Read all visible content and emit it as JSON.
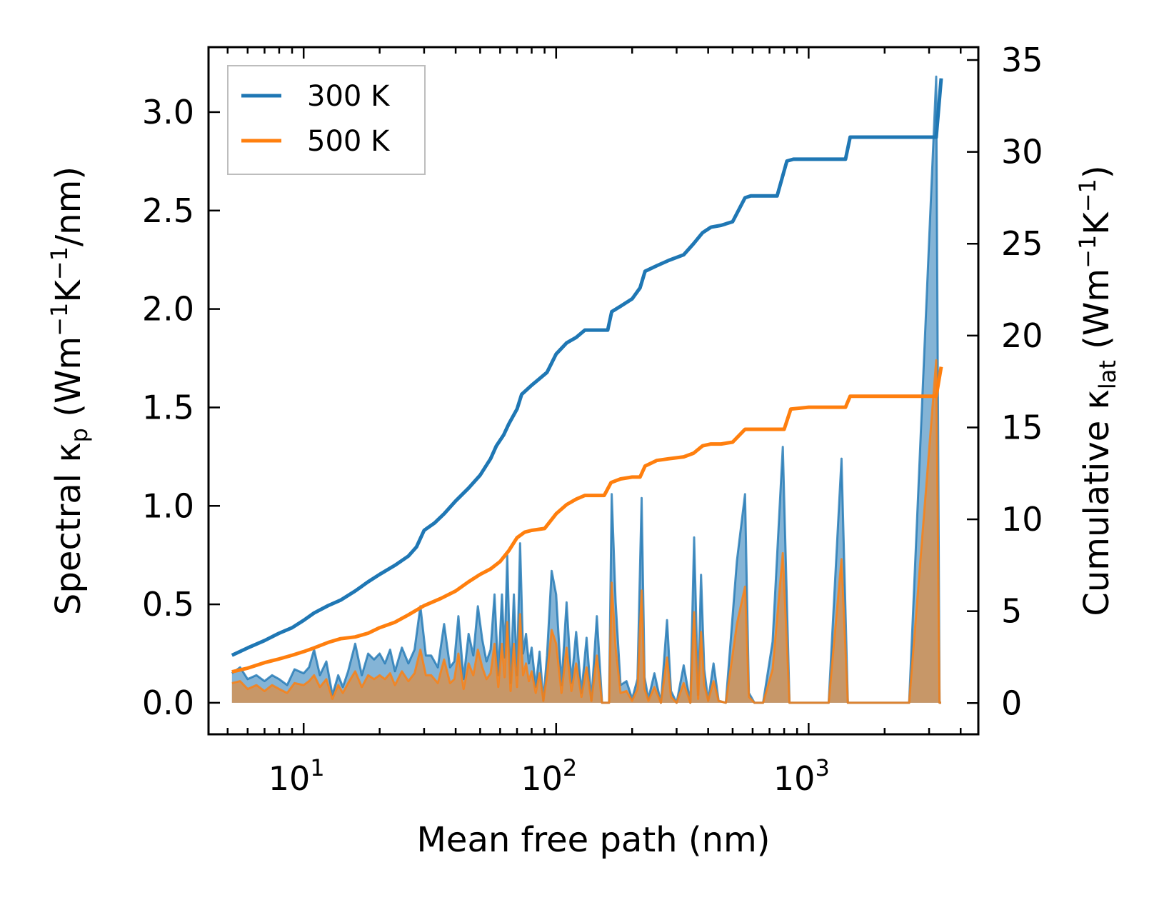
{
  "chart_data": {
    "type": "line",
    "title": "",
    "xlabel": "Mean free path (nm)",
    "xscale": "log",
    "xlim": [
      4.2,
      4700
    ],
    "x_ticks": [
      {
        "value": 10,
        "base": "10",
        "exp": "1"
      },
      {
        "value": 100,
        "base": "10",
        "exp": "2"
      },
      {
        "value": 1000,
        "base": "10",
        "exp": "3"
      }
    ],
    "y_left": {
      "label_prefix": "Spectral κ",
      "label_sub": "p",
      "label_units_open": " (Wm",
      "label_sup1": "−1",
      "label_mid": "K",
      "label_sup2": "−1",
      "label_units_close": "/nm)",
      "ylim": [
        -0.16,
        3.33
      ],
      "ticks": [
        "0.0",
        "0.5",
        "1.0",
        "1.5",
        "2.0",
        "2.5",
        "3.0"
      ],
      "tick_values": [
        0,
        0.5,
        1.0,
        1.5,
        2.0,
        2.5,
        3.0
      ]
    },
    "y_right": {
      "label_prefix": "Cumulative κ",
      "label_sub": "lat",
      "label_units_open": " (Wm",
      "label_sup1": "−1",
      "label_mid": "K",
      "label_sup2": "−1",
      "label_units_close": ")",
      "ylim": [
        -1.7,
        35.7
      ],
      "ticks": [
        "0",
        "5",
        "10",
        "15",
        "20",
        "25",
        "30",
        "35"
      ],
      "tick_values": [
        0,
        5,
        10,
        15,
        20,
        25,
        30,
        35
      ]
    },
    "legend": {
      "position": "top-left",
      "entries": [
        {
          "label": "300 K",
          "color": "#1f77b4"
        },
        {
          "label": "500 K",
          "color": "#ff7f0e"
        }
      ]
    },
    "cumulative_series": [
      {
        "name": "300 K",
        "color": "#1f77b4",
        "axis": "right",
        "x": [
          5.2,
          6.0,
          7.0,
          8.0,
          9.0,
          10.0,
          11.0,
          12.5,
          14.0,
          16.0,
          18.0,
          20.0,
          23.0,
          26.0,
          28.0,
          30.0,
          33.0,
          36.0,
          40.0,
          45.0,
          50.0,
          55.0,
          58.0,
          62.0,
          65.0,
          70.0,
          73.0,
          80.0,
          85.0,
          92.0,
          100.0,
          110.0,
          120.0,
          130.0,
          140.0,
          150.0,
          160.0,
          166.0,
          180.0,
          200.0,
          215.0,
          225.0,
          250.0,
          280.0,
          320.0,
          350.0,
          380.0,
          410.0,
          450.0,
          500.0,
          560.0,
          590.0,
          650.0,
          750.0,
          820.0,
          870.0,
          1000.0,
          1200.0,
          1400.0,
          1460.0,
          2000.0,
          3000.0,
          3200.0,
          3350.0
        ],
        "values": [
          2.6,
          3.0,
          3.4,
          3.8,
          4.1,
          4.5,
          4.9,
          5.3,
          5.6,
          6.1,
          6.6,
          7.0,
          7.5,
          8.0,
          8.5,
          9.4,
          9.8,
          10.3,
          11.0,
          11.7,
          12.4,
          13.3,
          14.0,
          14.6,
          15.2,
          16.0,
          16.8,
          17.3,
          17.6,
          18.0,
          19.0,
          19.6,
          19.9,
          20.3,
          20.3,
          20.3,
          20.3,
          21.3,
          21.6,
          22.0,
          22.6,
          23.5,
          23.8,
          24.1,
          24.4,
          25.0,
          25.6,
          25.9,
          26.0,
          26.2,
          27.5,
          27.6,
          27.6,
          27.6,
          29.5,
          29.6,
          29.6,
          29.6,
          29.6,
          30.8,
          30.8,
          30.8,
          30.8,
          34.0
        ]
      },
      {
        "name": "500 K",
        "color": "#ff7f0e",
        "axis": "right",
        "x": [
          5.2,
          6.0,
          7.0,
          8.0,
          9.0,
          10.0,
          11.0,
          12.5,
          14.0,
          16.0,
          18.0,
          20.0,
          23.0,
          26.0,
          30.0,
          35.0,
          40.0,
          45.0,
          50.0,
          55.0,
          60.0,
          65.0,
          70.0,
          75.0,
          80.0,
          90.0,
          100.0,
          110.0,
          120.0,
          130.0,
          140.0,
          155.0,
          165.0,
          180.0,
          200.0,
          215.0,
          225.0,
          250.0,
          280.0,
          320.0,
          350.0,
          380.0,
          410.0,
          450.0,
          500.0,
          560.0,
          600.0,
          700.0,
          800.0,
          850.0,
          1000.0,
          1200.0,
          1400.0,
          1460.0,
          2000.0,
          3000.0,
          3200.0,
          3350.0
        ],
        "values": [
          1.7,
          1.9,
          2.2,
          2.4,
          2.6,
          2.8,
          3.0,
          3.3,
          3.5,
          3.6,
          3.8,
          4.1,
          4.4,
          4.8,
          5.3,
          5.7,
          6.1,
          6.6,
          7.0,
          7.3,
          7.7,
          8.3,
          9.0,
          9.3,
          9.4,
          9.5,
          10.3,
          10.8,
          11.1,
          11.3,
          11.3,
          11.3,
          12.0,
          12.2,
          12.3,
          12.3,
          12.9,
          13.2,
          13.3,
          13.4,
          13.6,
          14.0,
          14.1,
          14.1,
          14.2,
          14.9,
          14.9,
          14.9,
          14.9,
          16.0,
          16.1,
          16.1,
          16.1,
          16.7,
          16.7,
          16.7,
          16.7,
          18.3
        ]
      }
    ],
    "spectral_series": [
      {
        "name": "300 K",
        "color": "#1f77b4",
        "axis": "left",
        "x": [
          5.2,
          5.6,
          6.0,
          6.5,
          7.0,
          7.5,
          8.0,
          8.6,
          9.2,
          10.0,
          10.5,
          11.0,
          11.6,
          12.3,
          13.0,
          13.7,
          14.3,
          15.0,
          16.0,
          17.0,
          18.0,
          19.0,
          20.0,
          21.0,
          22.0,
          23.0,
          24.5,
          26.0,
          27.5,
          29.0,
          30.5,
          32.0,
          34.0,
          36.0,
          38.0,
          39.5,
          41.0,
          43.0,
          45.0,
          47.0,
          49.0,
          51.0,
          53.0,
          55.0,
          57.0,
          59.0,
          61.0,
          62.5,
          64.0,
          66.0,
          68.0,
          70.0,
          72.0,
          74.0,
          76.0,
          78.0,
          80.0,
          83.0,
          86.0,
          89.0,
          92.0,
          96.0,
          100.0,
          105.0,
          110.0,
          115.0,
          120.0,
          126.0,
          132.0,
          138.0,
          145.0,
          152.0,
          158.0,
          162.0,
          166.0,
          172.0,
          180.0,
          190.0,
          200.0,
          210.0,
          218.0,
          224.0,
          232.0,
          245.0,
          260.0,
          275.0,
          285.0,
          300.0,
          320.0,
          340.0,
          352.0,
          365.0,
          375.0,
          386.0,
          400.0,
          420.0,
          440.0,
          470.0,
          520.0,
          560.0,
          580.0,
          610.0,
          660.0,
          720.0,
          790.0,
          840.0,
          870.0,
          920.0,
          1000.0,
          1200.0,
          1350.0,
          1430.0,
          1460.0,
          1500.0,
          1800.0,
          2500.0,
          3200.0,
          3300.0,
          3350.0
        ],
        "values": [
          0.15,
          0.18,
          0.12,
          0.14,
          0.11,
          0.14,
          0.12,
          0.09,
          0.17,
          0.15,
          0.18,
          0.27,
          0.14,
          0.21,
          0.04,
          0.14,
          0.08,
          0.16,
          0.3,
          0.14,
          0.25,
          0.22,
          0.25,
          0.2,
          0.27,
          0.16,
          0.28,
          0.2,
          0.27,
          0.49,
          0.24,
          0.24,
          0.18,
          0.4,
          0.18,
          0.21,
          0.44,
          0.12,
          0.35,
          0.24,
          0.49,
          0.32,
          0.21,
          0.27,
          0.55,
          0.14,
          0.55,
          0.23,
          0.75,
          0.1,
          0.55,
          0.14,
          0.81,
          0.25,
          0.35,
          0.2,
          0.28,
          0.08,
          0.26,
          0.01,
          0.24,
          0.67,
          0.55,
          0.09,
          0.51,
          0.1,
          0.36,
          0.05,
          0.33,
          0.01,
          0.44,
          0.0,
          0.0,
          0.0,
          1.06,
          0.51,
          0.09,
          0.11,
          0.02,
          0.12,
          1.04,
          0.13,
          0.02,
          0.15,
          0.0,
          0.42,
          0.06,
          0.0,
          0.19,
          0.0,
          0.84,
          0.04,
          0.65,
          0.17,
          0.01,
          0.2,
          0.01,
          0.0,
          0.72,
          1.06,
          0.05,
          0.0,
          0.0,
          0.31,
          1.3,
          0.0,
          0.0,
          0.0,
          0.0,
          0.0,
          1.24,
          0.0,
          0.0,
          0.0,
          0.0,
          0.0,
          3.18,
          0.0,
          0.0
        ]
      },
      {
        "name": "500 K",
        "color": "#ff7f0e",
        "axis": "left",
        "x": [
          5.2,
          5.6,
          6.0,
          6.5,
          7.0,
          7.5,
          8.0,
          8.6,
          9.2,
          10.0,
          10.5,
          11.0,
          11.6,
          12.3,
          13.0,
          13.7,
          14.3,
          15.0,
          16.0,
          17.0,
          18.0,
          19.0,
          20.0,
          21.0,
          22.0,
          23.0,
          24.5,
          26.0,
          27.5,
          29.0,
          30.5,
          32.0,
          34.0,
          36.0,
          38.0,
          39.5,
          41.0,
          43.0,
          45.0,
          47.0,
          49.0,
          51.0,
          53.0,
          55.0,
          57.0,
          59.0,
          61.0,
          62.5,
          64.0,
          66.0,
          68.0,
          70.0,
          72.0,
          74.0,
          76.0,
          78.0,
          80.0,
          83.0,
          86.0,
          89.0,
          92.0,
          96.0,
          100.0,
          105.0,
          110.0,
          115.0,
          120.0,
          126.0,
          132.0,
          138.0,
          145.0,
          152.0,
          158.0,
          162.0,
          166.0,
          172.0,
          180.0,
          190.0,
          200.0,
          210.0,
          218.0,
          224.0,
          232.0,
          245.0,
          260.0,
          275.0,
          285.0,
          300.0,
          320.0,
          340.0,
          352.0,
          365.0,
          375.0,
          386.0,
          400.0,
          420.0,
          440.0,
          470.0,
          520.0,
          560.0,
          580.0,
          610.0,
          660.0,
          720.0,
          790.0,
          840.0,
          870.0,
          920.0,
          1000.0,
          1200.0,
          1350.0,
          1430.0,
          1460.0,
          1500.0,
          1800.0,
          2500.0,
          3200.0,
          3300.0,
          3350.0
        ],
        "values": [
          0.1,
          0.11,
          0.07,
          0.09,
          0.06,
          0.09,
          0.07,
          0.05,
          0.1,
          0.09,
          0.11,
          0.14,
          0.08,
          0.12,
          0.02,
          0.09,
          0.05,
          0.1,
          0.16,
          0.08,
          0.14,
          0.12,
          0.14,
          0.12,
          0.15,
          0.09,
          0.16,
          0.11,
          0.15,
          0.27,
          0.14,
          0.14,
          0.1,
          0.22,
          0.1,
          0.12,
          0.25,
          0.07,
          0.2,
          0.14,
          0.27,
          0.18,
          0.12,
          0.15,
          0.3,
          0.08,
          0.3,
          0.13,
          0.41,
          0.06,
          0.3,
          0.08,
          0.45,
          0.14,
          0.2,
          0.11,
          0.16,
          0.05,
          0.15,
          0.01,
          0.14,
          0.37,
          0.3,
          0.05,
          0.28,
          0.06,
          0.2,
          0.03,
          0.18,
          0.01,
          0.24,
          0.0,
          0.0,
          0.0,
          0.61,
          0.28,
          0.05,
          0.06,
          0.01,
          0.07,
          0.57,
          0.07,
          0.01,
          0.08,
          0.0,
          0.23,
          0.03,
          0.0,
          0.1,
          0.0,
          0.46,
          0.02,
          0.36,
          0.09,
          0.01,
          0.11,
          0.01,
          0.0,
          0.4,
          0.59,
          0.03,
          0.0,
          0.0,
          0.17,
          0.76,
          0.0,
          0.0,
          0.0,
          0.0,
          0.0,
          0.73,
          0.0,
          0.0,
          0.0,
          0.0,
          0.0,
          1.74,
          0.0,
          0.0
        ]
      }
    ]
  }
}
